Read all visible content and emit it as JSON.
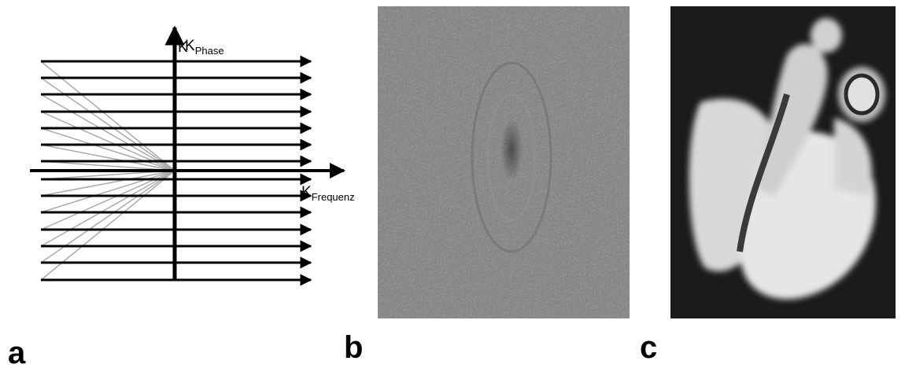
{
  "panels": [
    {
      "label": "a",
      "axes": {
        "phase": {
          "symbol": "K",
          "subscript": "Phase"
        },
        "frequency": {
          "symbol": "K",
          "subscript": "Frequenz"
        },
        "stray_symbol": "K"
      }
    },
    {
      "label": "b"
    },
    {
      "label": "c"
    }
  ]
}
